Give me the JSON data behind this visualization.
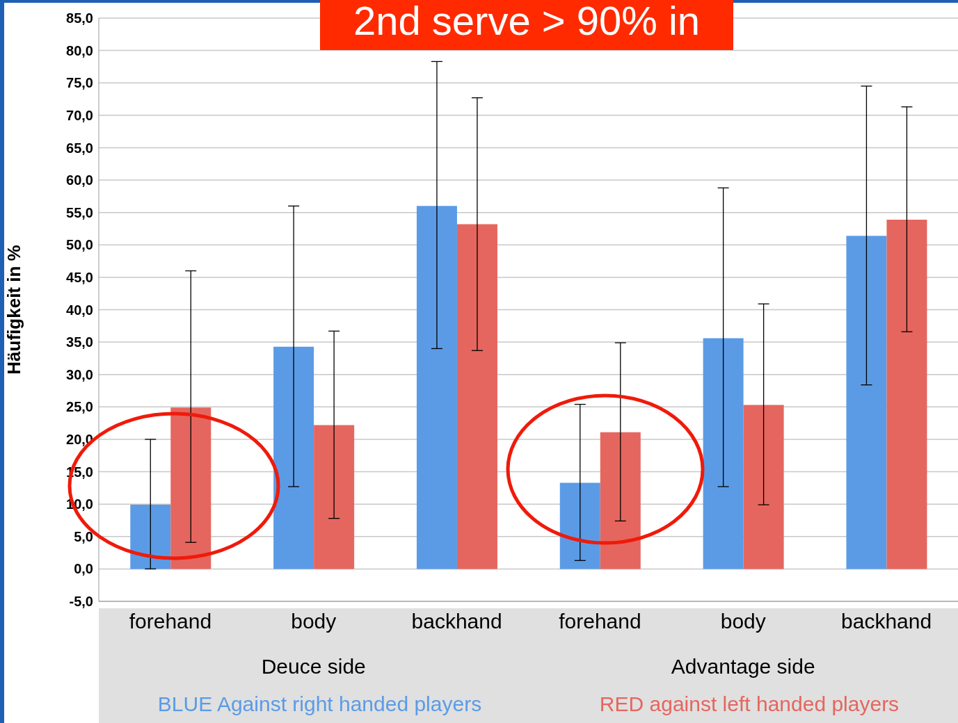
{
  "chart_data": {
    "type": "bar",
    "title": "2nd serve > 90% in",
    "ylabel": "Häufigkeit in %",
    "categories": [
      "forehand",
      "body",
      "backhand",
      "forehand",
      "body",
      "backhand"
    ],
    "annotations": [
      "Deuce side",
      "Advantage side"
    ],
    "series": [
      {
        "name": "BLUE Against right handed players",
        "color": "#5b9be6",
        "values": [
          9.9,
          34.3,
          56.0,
          13.3,
          35.6,
          51.4
        ],
        "errors": [
          [
            0,
            20.0
          ],
          [
            12.7,
            56.0
          ],
          [
            34.0,
            78.3
          ],
          [
            1.3,
            25.4
          ],
          [
            12.7,
            58.8
          ],
          [
            28.4,
            74.5
          ]
        ]
      },
      {
        "name": "RED against left handed players",
        "color": "#e5665e",
        "values": [
          24.9,
          22.2,
          53.2,
          21.1,
          25.3,
          53.9
        ],
        "errors": [
          [
            4.1,
            46.0
          ],
          [
            7.8,
            36.7
          ],
          [
            33.7,
            72.7
          ],
          [
            7.4,
            34.9
          ],
          [
            9.9,
            40.9
          ],
          [
            36.6,
            71.3
          ]
        ]
      }
    ],
    "ylim": [
      -5,
      85
    ],
    "yticks": [
      {
        "value": -5,
        "label": "-5,0"
      },
      {
        "value": 0,
        "label": "0,0"
      },
      {
        "value": 5,
        "label": "5,0"
      },
      {
        "value": 10,
        "label": "10,0"
      },
      {
        "value": 15,
        "label": "15,0"
      },
      {
        "value": 20,
        "label": "20,0"
      },
      {
        "value": 25,
        "label": "25,0"
      },
      {
        "value": 30,
        "label": "30,0"
      },
      {
        "value": 35,
        "label": "35,0"
      },
      {
        "value": 40,
        "label": "40,0"
      },
      {
        "value": 45,
        "label": "45,0"
      },
      {
        "value": 50,
        "label": "50,0"
      },
      {
        "value": 55,
        "label": "55,0"
      },
      {
        "value": 60,
        "label": "60,0"
      },
      {
        "value": 65,
        "label": "65,0"
      },
      {
        "value": 70,
        "label": "70,0"
      },
      {
        "value": 75,
        "label": "75,0"
      },
      {
        "value": 80,
        "label": "80,0"
      },
      {
        "value": 85,
        "label": "85,0"
      }
    ],
    "grid": "y",
    "legend": "bottom"
  }
}
